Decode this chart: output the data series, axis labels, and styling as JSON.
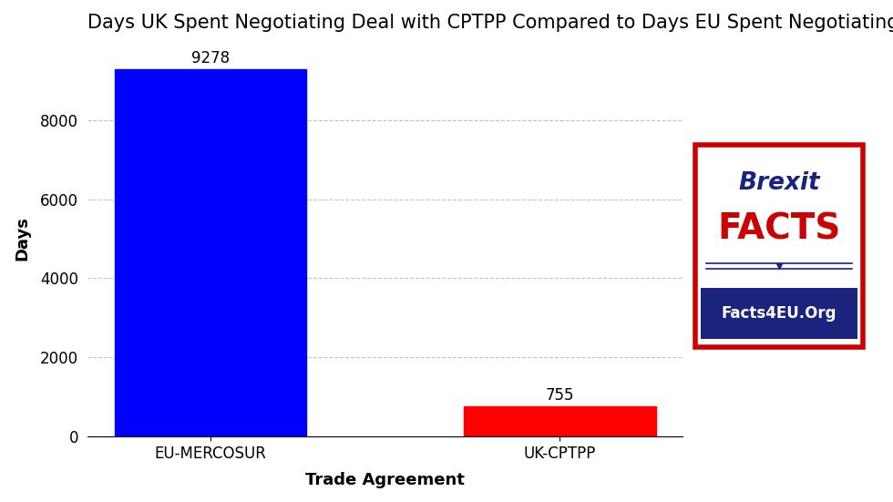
{
  "title": "Days UK Spent Negotiating Deal with CPTPP Compared to Days EU Spent Negotiating with MERCOSUR",
  "categories": [
    "EU-MERCOSUR",
    "UK-CPTPP"
  ],
  "values": [
    9278,
    755
  ],
  "bar_colors": [
    "#0000ff",
    "#ff0000"
  ],
  "xlabel": "Trade Agreement",
  "ylabel": "Days",
  "ylim": [
    0,
    10000
  ],
  "yticks": [
    0,
    2000,
    4000,
    6000,
    8000
  ],
  "grid_color": "#aaaaaa",
  "background_color": "#ffffff",
  "title_fontsize": 15,
  "label_fontsize": 13,
  "tick_fontsize": 12,
  "annotation_fontsize": 12,
  "logo_brexit_color": "#1a237e",
  "logo_facts_color": "#cc0000",
  "logo_border_color": "#cc0000",
  "logo_bg_color": "#1a237e"
}
